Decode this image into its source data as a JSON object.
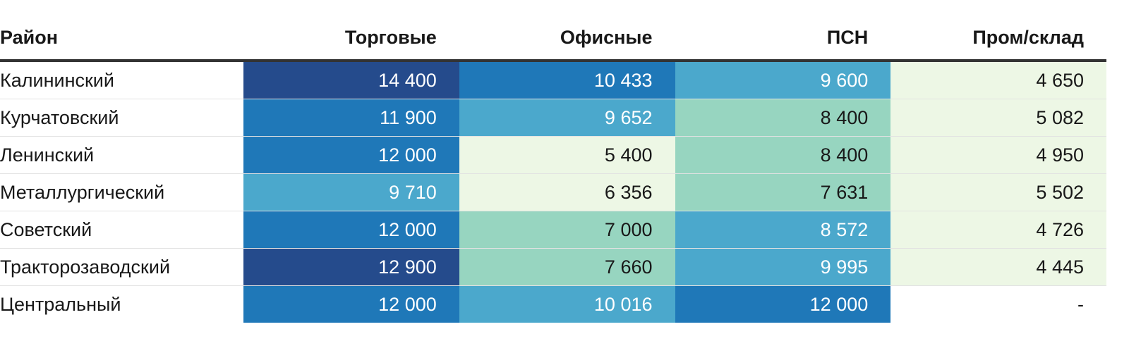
{
  "table": {
    "header": [
      "Район",
      "Торговые",
      "Офисные",
      "ПСН",
      "Пром/склад"
    ],
    "rows": [
      [
        "Калининский",
        "14 400",
        "10 433",
        "9 600",
        "4 650"
      ],
      [
        "Курчатовский",
        "11 900",
        "9 652",
        "8 400",
        "5 082"
      ],
      [
        "Ленинский",
        "12 000",
        "5 400",
        "8 400",
        "4 950"
      ],
      [
        "Металлургический",
        "9 710",
        "6 356",
        "7 631",
        "5 502"
      ],
      [
        "Советский",
        "12 000",
        "7 000",
        "8 572",
        "4 726"
      ],
      [
        "Тракторозаводский",
        "12 900",
        "7 660",
        "9 995",
        "4 445"
      ],
      [
        "Центральный",
        "12 000",
        "10 016",
        "12 000",
        "-"
      ]
    ],
    "cell_colors": [
      [
        "#254b8c",
        "#1f78b8",
        "#4ba8cc",
        "#edf7e5"
      ],
      [
        "#1f78b8",
        "#4ba8cc",
        "#97d5c0",
        "#edf7e5"
      ],
      [
        "#1f78b8",
        "#edf7e5",
        "#97d5c0",
        "#edf7e5"
      ],
      [
        "#4ba8cc",
        "#edf7e5",
        "#97d5c0",
        "#edf7e5"
      ],
      [
        "#1f78b8",
        "#97d5c0",
        "#4ba8cc",
        "#edf7e5"
      ],
      [
        "#254b8c",
        "#97d5c0",
        "#4ba8cc",
        "#edf7e5"
      ],
      [
        "#1f78b8",
        "#4ba8cc",
        "#1f78b8",
        "#ffffff"
      ]
    ]
  }
}
